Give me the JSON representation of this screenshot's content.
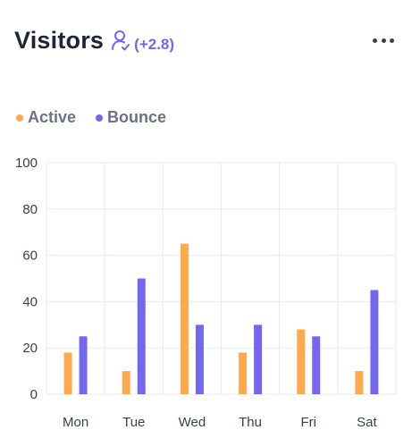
{
  "header": {
    "title": "Visitors",
    "change": "(+2.8)"
  },
  "icons": {
    "person": "person-check-icon",
    "more": "more-horizontal-icon"
  },
  "colors": {
    "active": "#ffa94d",
    "bounce": "#7367f0",
    "grid": "#e5eaf0",
    "accent": "#7367f0"
  },
  "chart_data": {
    "type": "bar",
    "categories": [
      "Mon",
      "Tue",
      "Wed",
      "Thu",
      "Fri",
      "Sat"
    ],
    "series": [
      {
        "name": "Active",
        "values": [
          18,
          10,
          65,
          18,
          28,
          10
        ]
      },
      {
        "name": "Bounce",
        "values": [
          25,
          50,
          30,
          30,
          25,
          45
        ]
      }
    ],
    "ylim": [
      0,
      100
    ],
    "yticks": [
      0,
      20,
      40,
      60,
      80,
      100
    ],
    "grid": true,
    "legend_position": "top-left",
    "title": "",
    "xlabel": "",
    "ylabel": ""
  }
}
